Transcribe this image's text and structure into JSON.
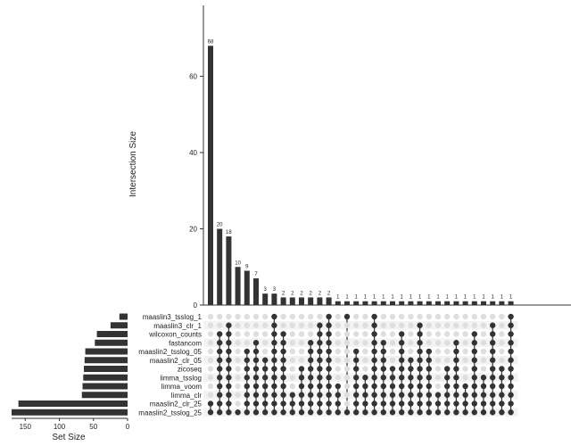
{
  "chart_data": {
    "type": "upset",
    "ylabel": "Intersection Size",
    "xlabel_sets": "Set Size",
    "ylim": [
      0,
      73
    ],
    "yticks": [
      0,
      20,
      40,
      60
    ],
    "set_size_ticks": [
      150,
      100,
      50,
      0
    ],
    "set_size_lim": [
      0,
      170
    ],
    "sets": [
      {
        "name": "maaslin3_tsslog_1",
        "size": 12
      },
      {
        "name": "maaslin3_clr_1",
        "size": 25
      },
      {
        "name": "wilcoxon_counts",
        "size": 45
      },
      {
        "name": "fastancom",
        "size": 48
      },
      {
        "name": "maaslin2_tsslog_05",
        "size": 62
      },
      {
        "name": "maaslin2_clr_05",
        "size": 63
      },
      {
        "name": "zicoseq",
        "size": 64
      },
      {
        "name": "limma_tsslog",
        "size": 65
      },
      {
        "name": "limma_voom",
        "size": 66
      },
      {
        "name": "limma_clr",
        "size": 67
      },
      {
        "name": "maaslin2_clr_25",
        "size": 160
      },
      {
        "name": "maaslin2_tsslog_25",
        "size": 170
      }
    ],
    "intersections": [
      {
        "value": 68,
        "sets": [
          11,
          10
        ]
      },
      {
        "value": 20,
        "sets": [
          11,
          10,
          9,
          8,
          7,
          6,
          5,
          4,
          3,
          2
        ]
      },
      {
        "value": 18,
        "sets": [
          11,
          10,
          9,
          8,
          7,
          6,
          5,
          4,
          3,
          2,
          1
        ]
      },
      {
        "value": 10,
        "sets": [
          11
        ]
      },
      {
        "value": 9,
        "sets": [
          11,
          10,
          9,
          8,
          7,
          6,
          5,
          4
        ]
      },
      {
        "value": 7,
        "sets": [
          11,
          10,
          9,
          8,
          7,
          6,
          5,
          4,
          3
        ]
      },
      {
        "value": 3,
        "sets": [
          11,
          10,
          9,
          8,
          7,
          6,
          5
        ]
      },
      {
        "value": 3,
        "sets": [
          11,
          10,
          9,
          8,
          7,
          6,
          5,
          4,
          3,
          2,
          1,
          0
        ]
      },
      {
        "value": 2,
        "sets": [
          11,
          10,
          9,
          8,
          7,
          6,
          5,
          4,
          3,
          2
        ]
      },
      {
        "value": 2,
        "sets": [
          11,
          10,
          9
        ]
      },
      {
        "value": 2,
        "sets": [
          11,
          10,
          9,
          8,
          7,
          6
        ]
      },
      {
        "value": 2,
        "sets": [
          11,
          10,
          9,
          8,
          7,
          6,
          5,
          4,
          3
        ]
      },
      {
        "value": 2,
        "sets": [
          11,
          10,
          9,
          8,
          7,
          6,
          5,
          4,
          3,
          2,
          1
        ]
      },
      {
        "value": 2,
        "sets": [
          11,
          10,
          9,
          8,
          7,
          6,
          5,
          4,
          3,
          2,
          1,
          0
        ]
      },
      {
        "value": 1,
        "sets": [
          11,
          10,
          9,
          8
        ]
      },
      {
        "value": 1,
        "sets": [
          11,
          0
        ]
      },
      {
        "value": 1,
        "sets": [
          11,
          10,
          9,
          8,
          7,
          6,
          5,
          4
        ]
      },
      {
        "value": 1,
        "sets": [
          11,
          10,
          9,
          8,
          7
        ]
      },
      {
        "value": 1,
        "sets": [
          11,
          10,
          9,
          8,
          7,
          6,
          5,
          4,
          3,
          2,
          1,
          0
        ]
      },
      {
        "value": 1,
        "sets": [
          11,
          10,
          9,
          8,
          7,
          6,
          5,
          4,
          3
        ]
      },
      {
        "value": 1,
        "sets": [
          11,
          10,
          9,
          8,
          7,
          6
        ]
      },
      {
        "value": 1,
        "sets": [
          11,
          10,
          9,
          8,
          7,
          6,
          5,
          4,
          3,
          2
        ]
      },
      {
        "value": 1,
        "sets": [
          11,
          10,
          9,
          8,
          7,
          6,
          5
        ]
      },
      {
        "value": 1,
        "sets": [
          11,
          10,
          9,
          8,
          7,
          6,
          5,
          4,
          3,
          2,
          1
        ]
      },
      {
        "value": 1,
        "sets": [
          11,
          10,
          9,
          8,
          7,
          6,
          5,
          4
        ]
      },
      {
        "value": 1,
        "sets": [
          11,
          10,
          9
        ]
      },
      {
        "value": 1,
        "sets": [
          11,
          10,
          9,
          8,
          7,
          6
        ]
      },
      {
        "value": 1,
        "sets": [
          11,
          10,
          9,
          8,
          7,
          6,
          5,
          4,
          3
        ]
      },
      {
        "value": 1,
        "sets": [
          11,
          10,
          9,
          8
        ]
      },
      {
        "value": 1,
        "sets": [
          11,
          10,
          9,
          8,
          7,
          6,
          5,
          4,
          3,
          2
        ]
      },
      {
        "value": 1,
        "sets": [
          11,
          10,
          9,
          8,
          7
        ]
      },
      {
        "value": 1,
        "sets": [
          11,
          10,
          9,
          8,
          7,
          6,
          5,
          4,
          3,
          2,
          1
        ]
      },
      {
        "value": 1,
        "sets": [
          11,
          10,
          9,
          8,
          7,
          6
        ]
      },
      {
        "value": 1,
        "sets": [
          11,
          10,
          9,
          8,
          7,
          6,
          5,
          4,
          3,
          2,
          1,
          0
        ]
      }
    ]
  }
}
